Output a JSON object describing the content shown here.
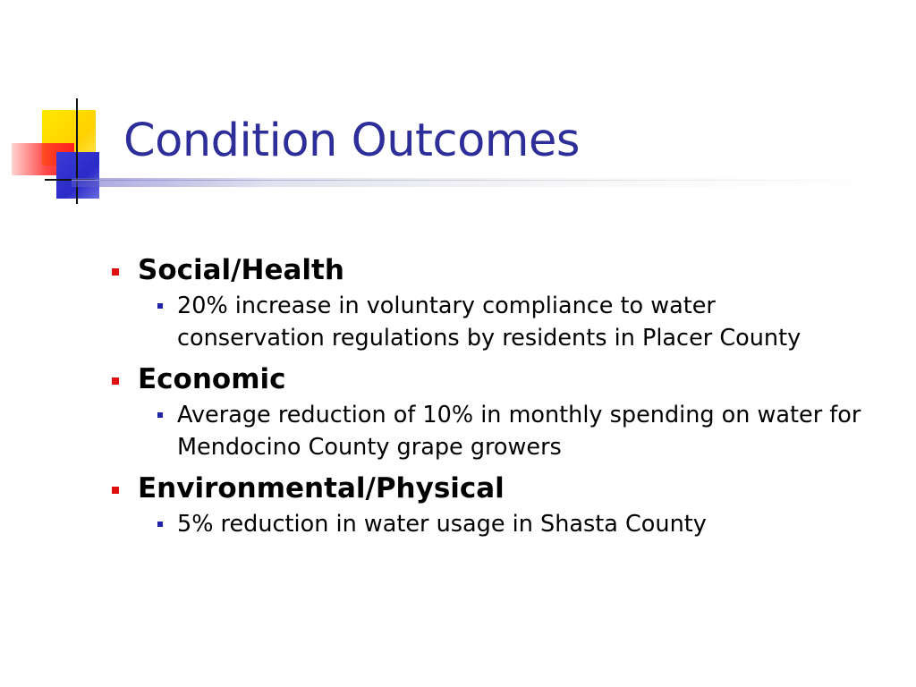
{
  "slide": {
    "title": "Condition Outcomes",
    "sections": [
      {
        "heading": "Social/Health",
        "points": [
          "20% increase in voluntary compliance to water conservation regulations by residents in Placer County"
        ]
      },
      {
        "heading": "Economic",
        "points": [
          "Average reduction of 10% in monthly spending on water for Mendocino County grape growers"
        ]
      },
      {
        "heading": "Environmental/Physical",
        "points": [
          "5% reduction in water usage in Shasta County"
        ]
      }
    ]
  },
  "colors": {
    "title": "#2e2e9a",
    "level1_bullet": "#e01010",
    "level2_bullet": "#2222aa"
  }
}
